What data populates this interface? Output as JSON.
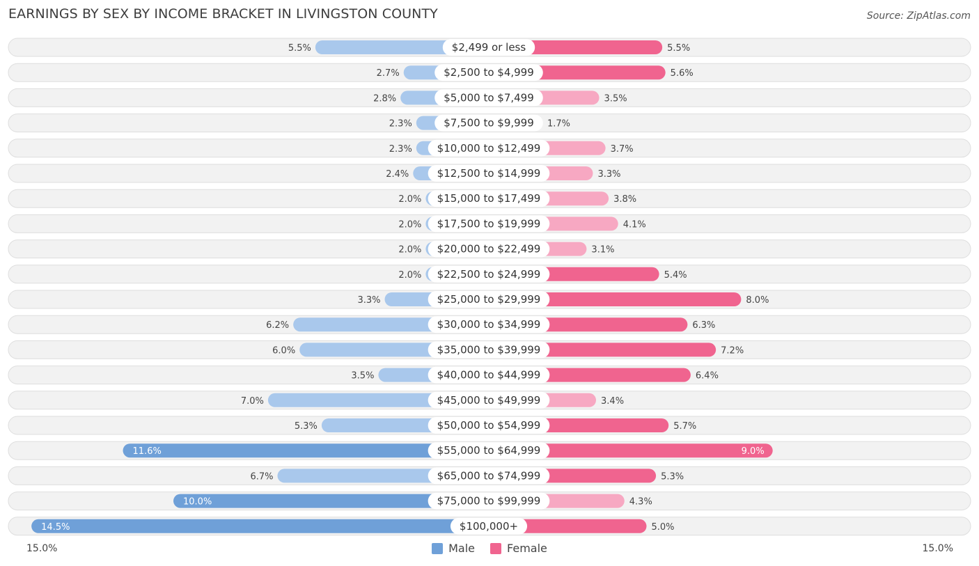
{
  "title": "EARNINGS BY SEX BY INCOME BRACKET IN LIVINGSTON COUNTY",
  "source": "Source: ZipAtlas.com",
  "axis": {
    "left_label": "15.0%",
    "right_label": "15.0%"
  },
  "legend": {
    "male": "Male",
    "female": "Female"
  },
  "colors": {
    "male": "#6fa0d8",
    "male_light": "#a9c8ec",
    "female": "#f0648f",
    "female_light": "#f7a8c2",
    "row_bg": "#f2f2f2",
    "row_border": "#dedede"
  },
  "chart_data": {
    "type": "bar",
    "orientation": "horizontal-diverging",
    "title": "EARNINGS BY SEX BY INCOME BRACKET IN LIVINGSTON COUNTY",
    "xlim": [
      -15.0,
      15.0
    ],
    "unit": "%",
    "categories": [
      "$2,499 or less",
      "$2,500 to $4,999",
      "$5,000 to $7,499",
      "$7,500 to $9,999",
      "$10,000 to $12,499",
      "$12,500 to $14,999",
      "$15,000 to $17,499",
      "$17,500 to $19,999",
      "$20,000 to $22,499",
      "$22,500 to $24,999",
      "$25,000 to $29,999",
      "$30,000 to $34,999",
      "$35,000 to $39,999",
      "$40,000 to $44,999",
      "$45,000 to $49,999",
      "$50,000 to $54,999",
      "$55,000 to $64,999",
      "$65,000 to $74,999",
      "$75,000 to $99,999",
      "$100,000+"
    ],
    "series": [
      {
        "name": "Male",
        "values": [
          5.5,
          2.7,
          2.8,
          2.3,
          2.3,
          2.4,
          2.0,
          2.0,
          2.0,
          2.0,
          3.3,
          6.2,
          6.0,
          3.5,
          7.0,
          5.3,
          11.6,
          6.7,
          10.0,
          14.5
        ],
        "labels": [
          "5.5%",
          "2.7%",
          "2.8%",
          "2.3%",
          "2.3%",
          "2.4%",
          "2.0%",
          "2.0%",
          "2.0%",
          "2.0%",
          "3.3%",
          "6.2%",
          "6.0%",
          "3.5%",
          "7.0%",
          "5.3%",
          "11.6%",
          "6.7%",
          "10.0%",
          "14.5%"
        ]
      },
      {
        "name": "Female",
        "values": [
          5.5,
          5.6,
          3.5,
          1.7,
          3.7,
          3.3,
          3.8,
          4.1,
          3.1,
          5.4,
          8.0,
          6.3,
          7.2,
          6.4,
          3.4,
          5.7,
          9.0,
          5.3,
          4.3,
          5.0
        ],
        "labels": [
          "5.5%",
          "5.6%",
          "3.5%",
          "1.7%",
          "3.7%",
          "3.3%",
          "3.8%",
          "4.1%",
          "3.1%",
          "5.4%",
          "8.0%",
          "6.3%",
          "7.2%",
          "6.4%",
          "3.4%",
          "5.7%",
          "9.0%",
          "5.3%",
          "4.3%",
          "5.0%"
        ]
      }
    ]
  }
}
